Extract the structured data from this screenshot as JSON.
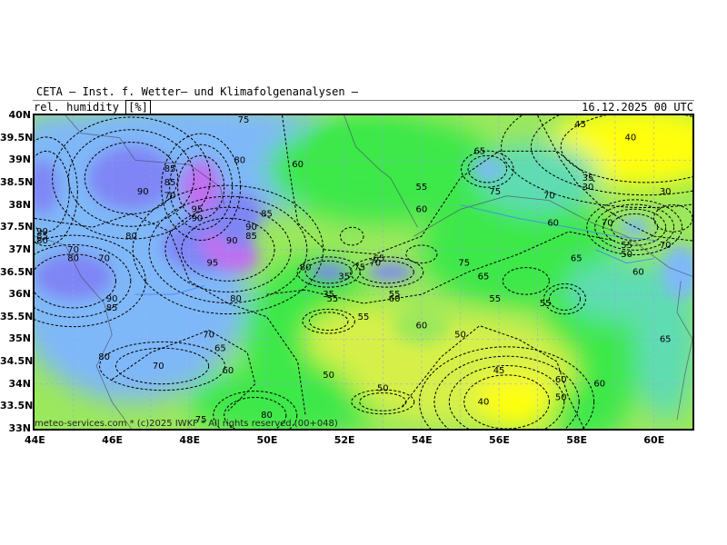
{
  "header": {
    "title": "CETA — Inst. f. Wetter— und Klimafolgenanalysen —",
    "parameter": "rel. humidity",
    "unit": "[%]",
    "datetime": "16.12.2025 00 UTC"
  },
  "credit": "meteo-services.com * (c)2025 IWKF * All rights reserved (00+048)",
  "map": {
    "lat_range": [
      33,
      40
    ],
    "lon_range": [
      44,
      61
    ],
    "lat_ticks": [
      "40N",
      "39.5N",
      "39N",
      "38.5N",
      "38N",
      "37.5N",
      "37N",
      "36.5N",
      "36N",
      "35.5N",
      "35N",
      "34.5N",
      "34N",
      "33.5N",
      "33N"
    ],
    "lon_ticks": [
      "44E",
      "46E",
      "48E",
      "50E",
      "52E",
      "54E",
      "56E",
      "58E",
      "60E"
    ],
    "contour_labels": [
      {
        "v": "75",
        "lon": 49.4,
        "lat": 39.9
      },
      {
        "v": "85",
        "lon": 47.5,
        "lat": 38.8
      },
      {
        "v": "85",
        "lon": 47.5,
        "lat": 38.5
      },
      {
        "v": "90",
        "lon": 46.8,
        "lat": 38.3
      },
      {
        "v": "70",
        "lon": 47.5,
        "lat": 38.2
      },
      {
        "v": "95",
        "lon": 48.2,
        "lat": 37.9
      },
      {
        "v": "90",
        "lon": 48.2,
        "lat": 37.7
      },
      {
        "v": "80",
        "lon": 49.3,
        "lat": 39.0
      },
      {
        "v": "60",
        "lon": 50.8,
        "lat": 38.9
      },
      {
        "v": "85",
        "lon": 50.0,
        "lat": 37.8
      },
      {
        "v": "90",
        "lon": 49.6,
        "lat": 37.5
      },
      {
        "v": "85",
        "lon": 49.6,
        "lat": 37.3
      },
      {
        "v": "90",
        "lon": 49.1,
        "lat": 37.2
      },
      {
        "v": "95",
        "lon": 48.6,
        "lat": 36.7
      },
      {
        "v": "80",
        "lon": 46.5,
        "lat": 37.3
      },
      {
        "v": "70",
        "lon": 45.0,
        "lat": 37.0
      },
      {
        "v": "80",
        "lon": 45.0,
        "lat": 36.8
      },
      {
        "v": "70",
        "lon": 45.8,
        "lat": 36.8
      },
      {
        "v": "90",
        "lon": 44.2,
        "lat": 37.4
      },
      {
        "v": "85",
        "lon": 44.2,
        "lat": 37.3
      },
      {
        "v": "80",
        "lon": 44.2,
        "lat": 37.2
      },
      {
        "v": "90",
        "lon": 46.0,
        "lat": 35.9
      },
      {
        "v": "85",
        "lon": 46.0,
        "lat": 35.7
      },
      {
        "v": "80",
        "lon": 49.2,
        "lat": 35.9
      },
      {
        "v": "70",
        "lon": 48.5,
        "lat": 35.1
      },
      {
        "v": "65",
        "lon": 48.8,
        "lat": 34.8
      },
      {
        "v": "60",
        "lon": 49.0,
        "lat": 34.3
      },
      {
        "v": "70",
        "lon": 47.2,
        "lat": 34.4
      },
      {
        "v": "80",
        "lon": 45.8,
        "lat": 34.6
      },
      {
        "v": "80",
        "lon": 50.0,
        "lat": 33.3
      },
      {
        "v": "75",
        "lon": 48.3,
        "lat": 33.2
      },
      {
        "v": "80",
        "lon": 51.0,
        "lat": 36.6
      },
      {
        "v": "35",
        "lon": 52.0,
        "lat": 36.4
      },
      {
        "v": "35",
        "lon": 51.6,
        "lat": 36.0
      },
      {
        "v": "55",
        "lon": 51.7,
        "lat": 35.9
      },
      {
        "v": "75",
        "lon": 52.4,
        "lat": 36.6
      },
      {
        "v": "70",
        "lon": 52.8,
        "lat": 36.7
      },
      {
        "v": "65",
        "lon": 52.9,
        "lat": 36.8
      },
      {
        "v": "55",
        "lon": 53.3,
        "lat": 36.0
      },
      {
        "v": "60",
        "lon": 53.3,
        "lat": 35.9
      },
      {
        "v": "55",
        "lon": 52.5,
        "lat": 35.5
      },
      {
        "v": "60",
        "lon": 54.0,
        "lat": 35.3
      },
      {
        "v": "50",
        "lon": 55.0,
        "lat": 35.1
      },
      {
        "v": "50",
        "lon": 51.6,
        "lat": 34.2
      },
      {
        "v": "50",
        "lon": 53.0,
        "lat": 33.9
      },
      {
        "v": "55",
        "lon": 54.0,
        "lat": 38.4
      },
      {
        "v": "60",
        "lon": 54.0,
        "lat": 37.9
      },
      {
        "v": "65",
        "lon": 55.5,
        "lat": 39.2
      },
      {
        "v": "75",
        "lon": 55.9,
        "lat": 38.3
      },
      {
        "v": "75",
        "lon": 55.1,
        "lat": 36.7
      },
      {
        "v": "65",
        "lon": 55.6,
        "lat": 36.4
      },
      {
        "v": "55",
        "lon": 55.9,
        "lat": 35.9
      },
      {
        "v": "55",
        "lon": 57.2,
        "lat": 35.8
      },
      {
        "v": "70",
        "lon": 57.3,
        "lat": 38.2
      },
      {
        "v": "45",
        "lon": 58.1,
        "lat": 39.8
      },
      {
        "v": "40",
        "lon": 59.4,
        "lat": 39.5
      },
      {
        "v": "35",
        "lon": 58.3,
        "lat": 38.6
      },
      {
        "v": "30",
        "lon": 58.3,
        "lat": 38.4
      },
      {
        "v": "30",
        "lon": 60.3,
        "lat": 38.3
      },
      {
        "v": "60",
        "lon": 57.4,
        "lat": 37.6
      },
      {
        "v": "70",
        "lon": 58.8,
        "lat": 37.6
      },
      {
        "v": "55",
        "lon": 59.3,
        "lat": 37.1
      },
      {
        "v": "50",
        "lon": 59.3,
        "lat": 36.9
      },
      {
        "v": "65",
        "lon": 58.0,
        "lat": 36.8
      },
      {
        "v": "60",
        "lon": 59.6,
        "lat": 36.5
      },
      {
        "v": "70",
        "lon": 60.3,
        "lat": 37.1
      },
      {
        "v": "65",
        "lon": 60.3,
        "lat": 35.0
      },
      {
        "v": "45",
        "lon": 56.0,
        "lat": 34.3
      },
      {
        "v": "40",
        "lon": 55.6,
        "lat": 33.6
      },
      {
        "v": "60",
        "lon": 57.6,
        "lat": 34.1
      },
      {
        "v": "50",
        "lon": 57.6,
        "lat": 33.7
      },
      {
        "v": "60",
        "lon": 58.6,
        "lat": 34.0
      }
    ]
  },
  "colors": {
    "vhigh": "#c070f0",
    "high": "#7f85f5",
    "mid": "#7fb8f8",
    "teal": "#5fdcb2",
    "green": "#3ce84a",
    "lime": "#9be85c",
    "yellowgreen": "#d6f04a",
    "yellow": "#ffff10",
    "river": "#3b7cff",
    "border": "#444466"
  }
}
